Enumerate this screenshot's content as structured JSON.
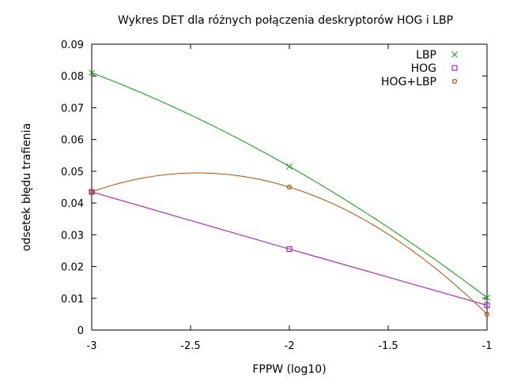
{
  "chart_data": {
    "type": "line",
    "title": "Wykres DET dla różnych połączenia deskryptorów HOG i LBP",
    "xlabel": "FPPW (log10)",
    "ylabel": "odsetek błędu trafienia",
    "xlim": [
      -3,
      -1
    ],
    "ylim": [
      0,
      0.09
    ],
    "x_ticks": [
      "-3",
      "-2.5",
      "-2",
      "-1.5",
      "-1"
    ],
    "y_ticks": [
      "0",
      "0.01",
      "0.02",
      "0.03",
      "0.04",
      "0.05",
      "0.06",
      "0.07",
      "0.08",
      "0.09"
    ],
    "x_tick_values": [
      -3,
      -2.5,
      -2,
      -1.5,
      -1
    ],
    "y_tick_values": [
      0,
      0.01,
      0.02,
      0.03,
      0.04,
      0.05,
      0.06,
      0.07,
      0.08,
      0.09
    ],
    "grid": false,
    "legend_position": "top-right",
    "series": [
      {
        "name": "LBP",
        "marker": "x",
        "color": "#00a000",
        "x": [
          -3,
          -2,
          -1
        ],
        "y": [
          0.081,
          0.0515,
          0.0102
        ]
      },
      {
        "name": "HOG",
        "marker": "square",
        "color": "#a000c0",
        "x": [
          -3,
          -2,
          -1
        ],
        "y": [
          0.0435,
          0.0255,
          0.0078
        ]
      },
      {
        "name": "HOG+LBP",
        "marker": "circle",
        "color": "#b05000",
        "x": [
          -3,
          -2,
          -1
        ],
        "y": [
          0.0435,
          0.045,
          0.005
        ]
      }
    ]
  }
}
